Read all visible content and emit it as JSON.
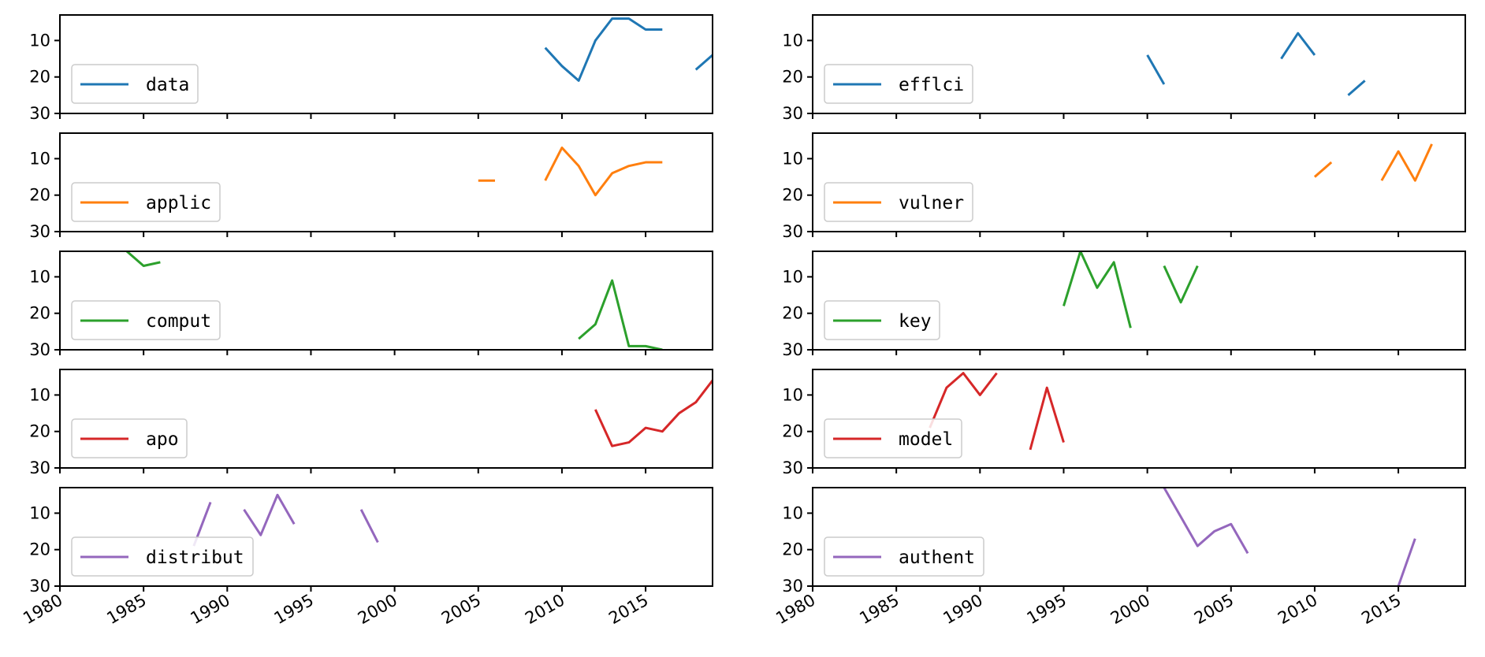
{
  "chart_data": {
    "type": "line",
    "layout": "5 rows x 2 columns",
    "xlim": [
      1980,
      2019
    ],
    "ylim": [
      30,
      3
    ],
    "y_inverted": true,
    "x_ticks": [
      1980,
      1985,
      1990,
      1995,
      2000,
      2005,
      2010,
      2015
    ],
    "y_ticks": [
      10,
      20,
      30
    ],
    "legend_position": "lower-left",
    "colors": {
      "blue": "#1f77b4",
      "orange": "#ff7f0e",
      "green": "#2ca02c",
      "red": "#d62728",
      "purple": "#9467bd"
    },
    "panels": [
      {
        "label": "data",
        "color": "#1f77b4",
        "col": 0,
        "row": 0,
        "points": [
          [
            2009,
            12
          ],
          [
            2010,
            17
          ],
          [
            2011,
            21
          ],
          [
            2012,
            10
          ],
          [
            2013,
            4
          ],
          [
            2014,
            4
          ],
          [
            2015,
            7
          ],
          [
            2016,
            7
          ],
          [
            2017,
            null
          ],
          [
            2018,
            18
          ],
          [
            2019,
            14
          ]
        ]
      },
      {
        "label": "efflci",
        "color": "#1f77b4",
        "col": 1,
        "row": 0,
        "points": [
          [
            2000,
            14
          ],
          [
            2001,
            22
          ],
          [
            2002,
            null
          ],
          [
            2008,
            15
          ],
          [
            2009,
            8
          ],
          [
            2010,
            14
          ],
          [
            2011,
            null
          ],
          [
            2012,
            25
          ],
          [
            2013,
            21
          ]
        ]
      },
      {
        "label": "applic",
        "color": "#ff7f0e",
        "col": 0,
        "row": 1,
        "points": [
          [
            2005,
            16
          ],
          [
            2006,
            16
          ],
          [
            2007,
            null
          ],
          [
            2009,
            16
          ],
          [
            2010,
            7
          ],
          [
            2011,
            12
          ],
          [
            2012,
            20
          ],
          [
            2013,
            14
          ],
          [
            2014,
            12
          ],
          [
            2015,
            11
          ],
          [
            2016,
            11
          ]
        ]
      },
      {
        "label": "vulner",
        "color": "#ff7f0e",
        "col": 1,
        "row": 1,
        "points": [
          [
            2010,
            15
          ],
          [
            2011,
            11
          ],
          [
            2012,
            null
          ],
          [
            2014,
            16
          ],
          [
            2015,
            8
          ],
          [
            2016,
            16
          ],
          [
            2017,
            6
          ]
        ]
      },
      {
        "label": "comput",
        "color": "#2ca02c",
        "col": 0,
        "row": 2,
        "points": [
          [
            1984,
            3
          ],
          [
            1985,
            7
          ],
          [
            1986,
            6
          ],
          [
            1987,
            null
          ],
          [
            2011,
            27
          ],
          [
            2012,
            23
          ],
          [
            2013,
            11
          ],
          [
            2014,
            29
          ],
          [
            2015,
            29
          ],
          [
            2016,
            30
          ]
        ]
      },
      {
        "label": "key",
        "color": "#2ca02c",
        "col": 1,
        "row": 2,
        "points": [
          [
            1995,
            18
          ],
          [
            1996,
            3
          ],
          [
            1997,
            13
          ],
          [
            1998,
            6
          ],
          [
            1999,
            24
          ],
          [
            2000,
            null
          ],
          [
            2001,
            7
          ],
          [
            2002,
            17
          ],
          [
            2003,
            7
          ]
        ]
      },
      {
        "label": "apo",
        "color": "#d62728",
        "col": 0,
        "row": 3,
        "points": [
          [
            2012,
            14
          ],
          [
            2013,
            24
          ],
          [
            2014,
            23
          ],
          [
            2015,
            19
          ],
          [
            2016,
            20
          ],
          [
            2017,
            15
          ],
          [
            2018,
            12
          ],
          [
            2019,
            6
          ]
        ]
      },
      {
        "label": "model",
        "color": "#d62728",
        "col": 1,
        "row": 3,
        "points": [
          [
            1987,
            19
          ],
          [
            1988,
            8
          ],
          [
            1989,
            4
          ],
          [
            1990,
            10
          ],
          [
            1991,
            4
          ],
          [
            1992,
            null
          ],
          [
            1993,
            25
          ],
          [
            1994,
            8
          ],
          [
            1995,
            23
          ]
        ]
      },
      {
        "label": "distribut",
        "color": "#9467bd",
        "col": 0,
        "row": 4,
        "points": [
          [
            1988,
            19
          ],
          [
            1989,
            7
          ],
          [
            1990,
            null
          ],
          [
            1991,
            9
          ],
          [
            1992,
            16
          ],
          [
            1993,
            5
          ],
          [
            1994,
            13
          ],
          [
            1995,
            null
          ],
          [
            1998,
            9
          ],
          [
            1999,
            18
          ]
        ]
      },
      {
        "label": "authent",
        "color": "#9467bd",
        "col": 1,
        "row": 4,
        "points": [
          [
            2001,
            3
          ],
          [
            2002,
            11
          ],
          [
            2003,
            19
          ],
          [
            2004,
            15
          ],
          [
            2005,
            13
          ],
          [
            2006,
            21
          ],
          [
            2007,
            null
          ],
          [
            2015,
            30
          ],
          [
            2016,
            17
          ]
        ]
      }
    ]
  }
}
